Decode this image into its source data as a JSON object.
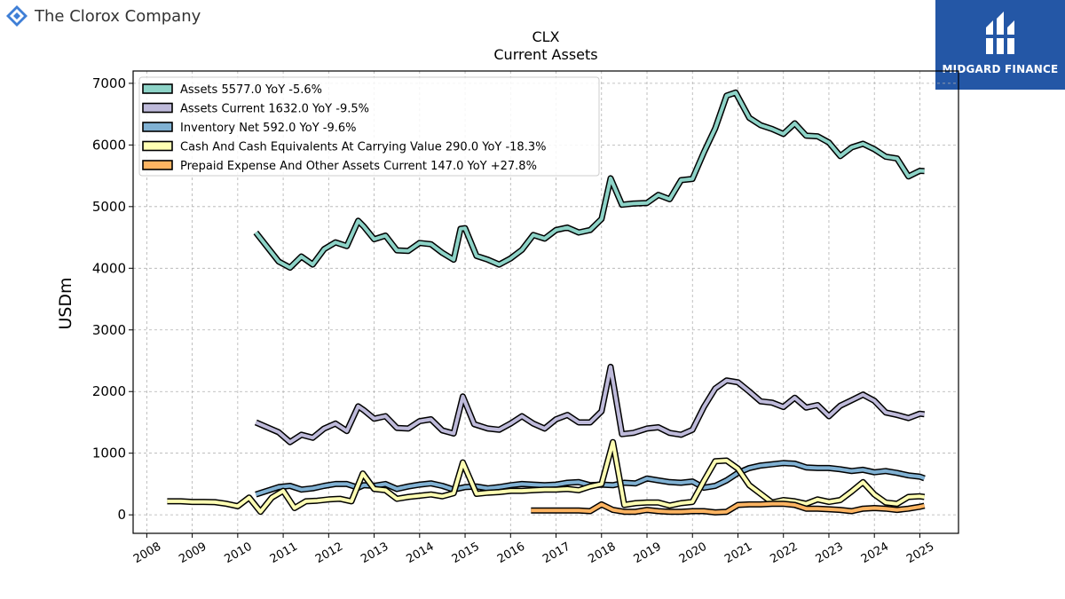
{
  "header": {
    "company": "The Clorox Company",
    "logo_icon": "clorox-logo-icon",
    "badge_text": "MIDGARD FINANCE",
    "badge_color": "#2457a6"
  },
  "chart_data": {
    "type": "line",
    "title": "CLX",
    "subtitle": "Current  Assets",
    "ylabel": "USDm",
    "xlabel": "",
    "ylim": [
      -300,
      7200
    ],
    "xlim": [
      2007.7,
      2025.85
    ],
    "yticks": [
      0,
      1000,
      2000,
      3000,
      4000,
      5000,
      6000,
      7000
    ],
    "xticks": [
      "2008",
      "2009",
      "2010",
      "2011",
      "2012",
      "2013",
      "2014",
      "2015",
      "2016",
      "2017",
      "2018",
      "2019",
      "2020",
      "2021",
      "2022",
      "2023",
      "2024",
      "2025"
    ],
    "grid": true,
    "legend_position": "top-left",
    "series": [
      {
        "name": "Assets  5577.0 YoY -5.6%",
        "color": "#8dd3c7",
        "x": [
          2010.4,
          2010.9,
          2011.15,
          2011.4,
          2011.65,
          2011.9,
          2012.15,
          2012.4,
          2012.65,
          2012.77,
          2013.0,
          2013.25,
          2013.5,
          2013.75,
          2014.0,
          2014.25,
          2014.5,
          2014.75,
          2014.9,
          2015.0,
          2015.25,
          2015.5,
          2015.75,
          2016.0,
          2016.25,
          2016.5,
          2016.75,
          2017.0,
          2017.25,
          2017.5,
          2017.75,
          2018.0,
          2018.2,
          2018.45,
          2018.7,
          2019.0,
          2019.25,
          2019.5,
          2019.75,
          2020.0,
          2020.25,
          2020.5,
          2020.75,
          2020.95,
          2021.25,
          2021.5,
          2021.75,
          2022.0,
          2022.25,
          2022.5,
          2022.75,
          2023.0,
          2023.25,
          2023.5,
          2023.75,
          2024.0,
          2024.25,
          2024.5,
          2024.75,
          2025.0,
          2025.1
        ],
        "y": [
          4580,
          4110,
          4010,
          4190,
          4060,
          4310,
          4420,
          4360,
          4770,
          4680,
          4470,
          4530,
          4290,
          4280,
          4410,
          4390,
          4250,
          4140,
          4640,
          4650,
          4200,
          4140,
          4060,
          4160,
          4300,
          4540,
          4480,
          4620,
          4660,
          4580,
          4620,
          4800,
          5460,
          5030,
          5050,
          5060,
          5190,
          5120,
          5430,
          5450,
          5880,
          6270,
          6800,
          6850,
          6440,
          6320,
          6260,
          6180,
          6350,
          6150,
          6140,
          6040,
          5820,
          5960,
          6020,
          5930,
          5810,
          5780,
          5490,
          5580,
          5577
        ]
      },
      {
        "name": "Assets Current  1632.0 YoY -9.5%",
        "color": "#bebada",
        "x": [
          2010.4,
          2010.9,
          2011.15,
          2011.4,
          2011.65,
          2011.9,
          2012.15,
          2012.4,
          2012.65,
          2012.77,
          2013.0,
          2013.25,
          2013.5,
          2013.75,
          2014.0,
          2014.25,
          2014.5,
          2014.75,
          2014.95,
          2015.2,
          2015.5,
          2015.75,
          2016.0,
          2016.25,
          2016.5,
          2016.75,
          2017.0,
          2017.25,
          2017.5,
          2017.75,
          2018.0,
          2018.2,
          2018.45,
          2018.7,
          2019.0,
          2019.25,
          2019.5,
          2019.75,
          2020.0,
          2020.25,
          2020.5,
          2020.75,
          2021.0,
          2021.25,
          2021.5,
          2021.75,
          2022.0,
          2022.25,
          2022.5,
          2022.75,
          2023.0,
          2023.25,
          2023.5,
          2023.75,
          2024.0,
          2024.25,
          2024.5,
          2024.75,
          2025.0,
          2025.1
        ],
        "y": [
          1500,
          1340,
          1180,
          1300,
          1250,
          1400,
          1480,
          1360,
          1760,
          1700,
          1560,
          1600,
          1410,
          1400,
          1520,
          1550,
          1370,
          1320,
          1920,
          1470,
          1400,
          1380,
          1480,
          1600,
          1480,
          1400,
          1550,
          1620,
          1500,
          1500,
          1680,
          2400,
          1310,
          1330,
          1400,
          1420,
          1330,
          1300,
          1380,
          1750,
          2050,
          2180,
          2150,
          2000,
          1840,
          1820,
          1750,
          1900,
          1740,
          1780,
          1600,
          1770,
          1860,
          1950,
          1850,
          1660,
          1620,
          1570,
          1640,
          1632
        ]
      },
      {
        "name": "Inventory Net  592.0 YoY -9.6%",
        "color": "#80b1d3",
        "x": [
          2010.4,
          2010.9,
          2011.15,
          2011.4,
          2011.65,
          2011.9,
          2012.15,
          2012.4,
          2012.65,
          2012.77,
          2013.0,
          2013.25,
          2013.5,
          2013.75,
          2014.0,
          2014.25,
          2014.5,
          2014.75,
          2015.0,
          2015.25,
          2015.5,
          2015.75,
          2016.0,
          2016.25,
          2016.5,
          2016.75,
          2017.0,
          2017.25,
          2017.5,
          2017.75,
          2018.0,
          2018.25,
          2018.5,
          2018.75,
          2019.0,
          2019.25,
          2019.5,
          2019.75,
          2020.0,
          2020.25,
          2020.5,
          2020.75,
          2021.0,
          2021.25,
          2021.5,
          2021.75,
          2022.0,
          2022.25,
          2022.5,
          2022.75,
          2023.0,
          2023.25,
          2023.5,
          2023.75,
          2024.0,
          2024.25,
          2024.5,
          2024.75,
          2025.0,
          2025.1
        ],
        "y": [
          330,
          450,
          470,
          410,
          430,
          470,
          500,
          500,
          440,
          480,
          470,
          500,
          420,
          460,
          490,
          510,
          470,
          410,
          450,
          460,
          430,
          450,
          480,
          500,
          490,
          480,
          490,
          520,
          530,
          480,
          490,
          480,
          520,
          510,
          590,
          560,
          530,
          520,
          540,
          440,
          470,
          560,
          680,
          760,
          800,
          820,
          840,
          830,
          770,
          760,
          760,
          740,
          710,
          730,
          690,
          710,
          680,
          640,
          620,
          592
        ]
      },
      {
        "name": "Cash And Cash Equivalents At Carrying Value  290.0 YoY -18.3%",
        "color": "#ffffb3",
        "x": [
          2008.45,
          2008.75,
          2009.0,
          2009.25,
          2009.5,
          2009.75,
          2010.0,
          2010.25,
          2010.5,
          2010.75,
          2011.0,
          2011.25,
          2011.5,
          2011.75,
          2012.0,
          2012.25,
          2012.5,
          2012.75,
          2013.0,
          2013.25,
          2013.5,
          2013.75,
          2014.0,
          2014.25,
          2014.5,
          2014.75,
          2014.95,
          2015.25,
          2015.5,
          2015.75,
          2016.0,
          2016.25,
          2016.5,
          2016.75,
          2017.0,
          2017.25,
          2017.5,
          2017.75,
          2018.0,
          2018.25,
          2018.5,
          2018.75,
          2019.0,
          2019.25,
          2019.5,
          2019.75,
          2020.0,
          2020.25,
          2020.5,
          2020.75,
          2021.0,
          2021.25,
          2021.5,
          2021.75,
          2022.0,
          2022.25,
          2022.5,
          2022.75,
          2023.0,
          2023.25,
          2023.5,
          2023.75,
          2024.0,
          2024.25,
          2024.5,
          2024.75,
          2025.0,
          2025.1
        ],
        "y": [
          220,
          220,
          210,
          210,
          205,
          180,
          140,
          280,
          50,
          280,
          390,
          110,
          220,
          230,
          250,
          260,
          220,
          670,
          420,
          400,
          260,
          290,
          310,
          330,
          300,
          350,
          850,
          340,
          360,
          370,
          390,
          390,
          400,
          410,
          410,
          420,
          400,
          460,
          500,
          1180,
          160,
          190,
          200,
          200,
          150,
          190,
          210,
          550,
          870,
          880,
          750,
          480,
          340,
          200,
          240,
          220,
          180,
          250,
          210,
          240,
          380,
          530,
          330,
          200,
          180,
          290,
          300,
          290
        ]
      },
      {
        "name": "Prepaid Expense And Other Assets Current  147.0 YoY +27.8%",
        "color": "#fdb462",
        "x": [
          2016.45,
          2016.75,
          2017.0,
          2017.25,
          2017.5,
          2017.75,
          2018.0,
          2018.25,
          2018.5,
          2018.75,
          2019.0,
          2019.25,
          2019.5,
          2019.75,
          2020.0,
          2020.25,
          2020.5,
          2020.75,
          2021.0,
          2021.25,
          2021.5,
          2021.75,
          2022.0,
          2022.25,
          2022.5,
          2022.75,
          2023.0,
          2023.25,
          2023.5,
          2023.75,
          2024.0,
          2024.25,
          2024.5,
          2024.75,
          2025.0,
          2025.1
        ],
        "y": [
          70,
          70,
          70,
          70,
          70,
          60,
          170,
          80,
          50,
          50,
          80,
          60,
          50,
          50,
          60,
          60,
          40,
          50,
          160,
          170,
          170,
          180,
          180,
          160,
          100,
          100,
          90,
          80,
          60,
          100,
          110,
          100,
          80,
          100,
          130,
          147
        ]
      }
    ]
  }
}
